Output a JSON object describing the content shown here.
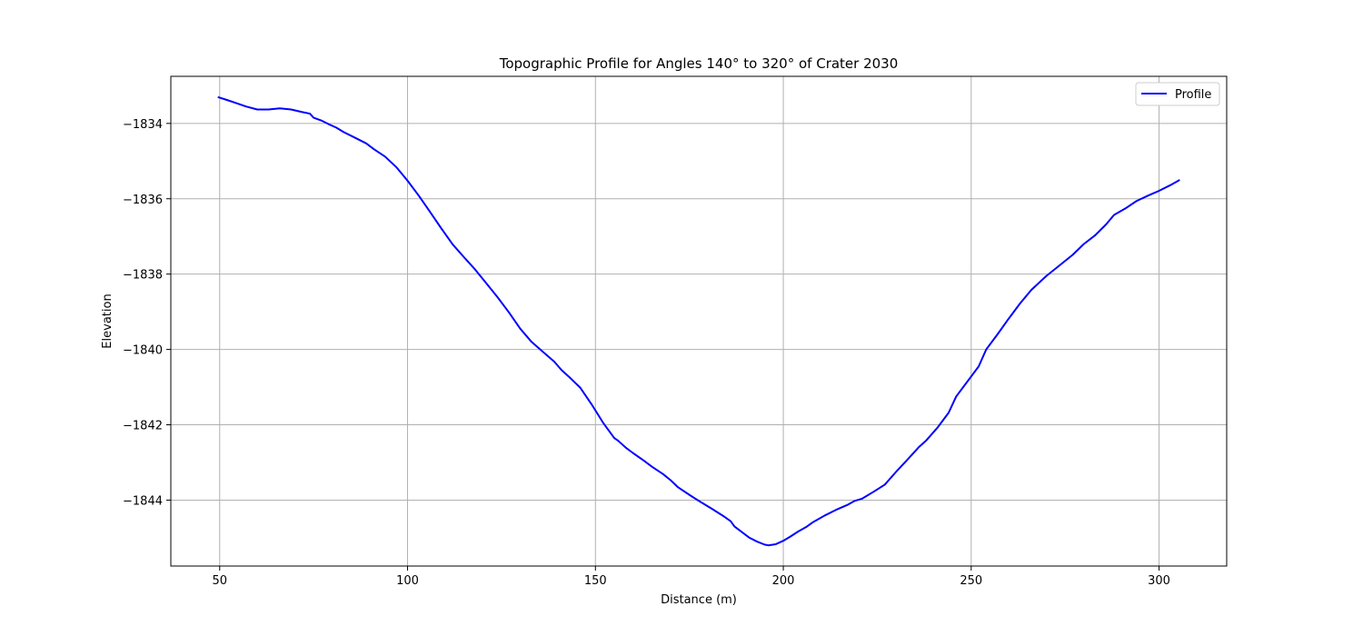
{
  "chart_data": {
    "type": "line",
    "title": "Topographic Profile for Angles 140° to 320° of Crater 2030",
    "xlabel": "Distance (m)",
    "ylabel": "Elevation",
    "xlim": [
      37,
      318
    ],
    "ylim": [
      -1845.75,
      -1832.75
    ],
    "xticks": [
      50,
      100,
      150,
      200,
      250,
      300
    ],
    "yticks": [
      -1834,
      -1836,
      -1838,
      -1840,
      -1842,
      -1844
    ],
    "grid": true,
    "legend_position": "top-right",
    "series": [
      {
        "name": "Profile",
        "color": "#0000ff",
        "x": [
          49.5,
          52,
          55,
          57,
          60,
          63,
          66,
          69,
          72,
          74,
          75,
          77,
          79,
          81,
          83,
          86,
          89,
          91,
          94,
          97,
          100,
          103,
          106,
          109,
          112,
          115,
          118,
          121,
          124,
          127,
          130,
          133,
          136,
          139,
          141,
          143,
          146,
          149,
          152,
          155,
          156,
          158,
          160,
          163,
          165,
          168,
          170,
          172,
          175,
          178,
          181,
          184,
          186,
          187,
          189,
          191,
          193,
          195,
          196,
          198,
          200,
          202,
          204,
          206,
          208,
          211,
          214,
          217,
          219,
          221,
          224,
          227,
          230,
          233,
          236,
          238,
          241,
          244,
          246,
          249,
          252,
          254,
          257,
          260,
          263,
          266,
          270,
          274,
          277,
          280,
          283,
          286,
          288,
          291,
          294,
          297,
          300,
          303,
          305.5
        ],
        "y": [
          -1833.3,
          -1833.38,
          -1833.48,
          -1833.55,
          -1833.63,
          -1833.63,
          -1833.6,
          -1833.63,
          -1833.7,
          -1833.74,
          -1833.85,
          -1833.92,
          -1834.02,
          -1834.11,
          -1834.23,
          -1834.38,
          -1834.53,
          -1834.68,
          -1834.88,
          -1835.16,
          -1835.52,
          -1835.92,
          -1836.35,
          -1836.79,
          -1837.21,
          -1837.55,
          -1837.88,
          -1838.25,
          -1838.62,
          -1839.02,
          -1839.45,
          -1839.8,
          -1840.06,
          -1840.32,
          -1840.55,
          -1840.73,
          -1841.02,
          -1841.46,
          -1841.94,
          -1842.35,
          -1842.42,
          -1842.6,
          -1842.75,
          -1842.96,
          -1843.11,
          -1843.31,
          -1843.47,
          -1843.66,
          -1843.86,
          -1844.05,
          -1844.23,
          -1844.42,
          -1844.56,
          -1844.7,
          -1844.85,
          -1845.0,
          -1845.1,
          -1845.18,
          -1845.2,
          -1845.17,
          -1845.08,
          -1844.96,
          -1844.83,
          -1844.72,
          -1844.58,
          -1844.41,
          -1844.26,
          -1844.13,
          -1844.02,
          -1843.96,
          -1843.78,
          -1843.59,
          -1843.25,
          -1842.93,
          -1842.6,
          -1842.42,
          -1842.08,
          -1841.68,
          -1841.25,
          -1840.85,
          -1840.45,
          -1840.0,
          -1839.6,
          -1839.18,
          -1838.78,
          -1838.42,
          -1838.05,
          -1837.73,
          -1837.49,
          -1837.2,
          -1836.97,
          -1836.67,
          -1836.43,
          -1836.26,
          -1836.06,
          -1835.92,
          -1835.79,
          -1835.64,
          -1835.5
        ]
      }
    ]
  }
}
